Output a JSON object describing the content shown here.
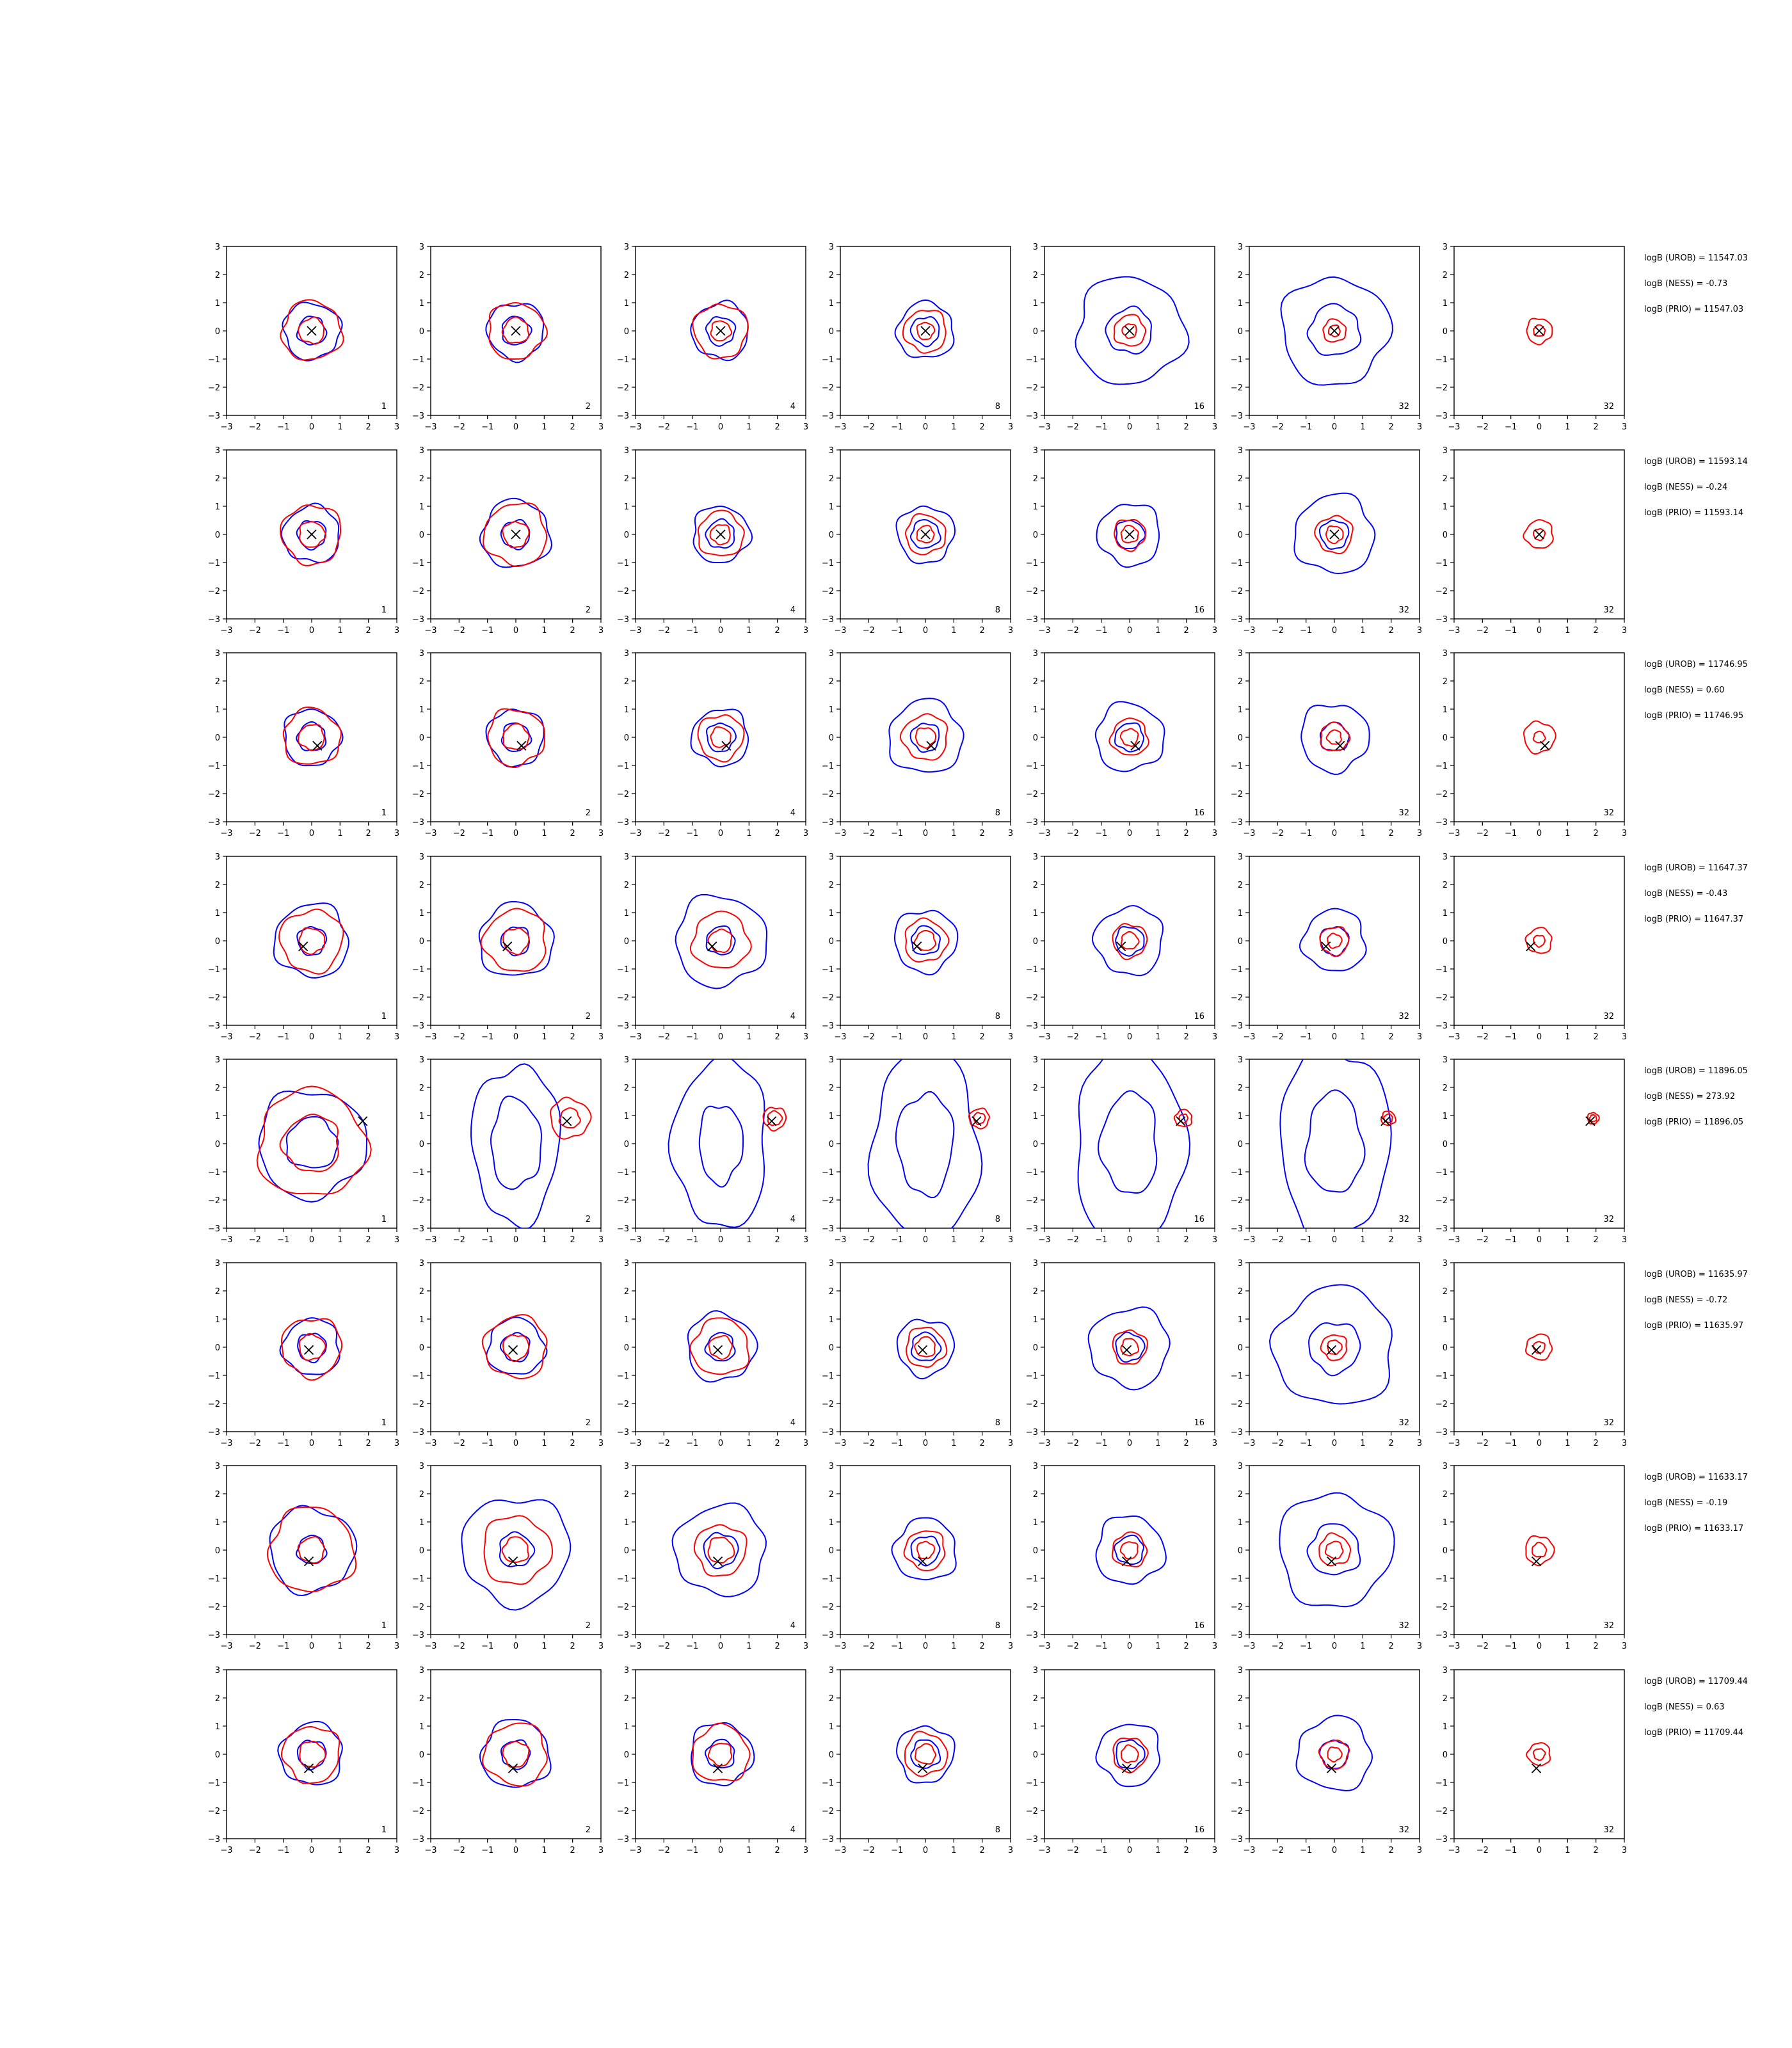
{
  "colors": {
    "prior": "#0000ff",
    "posterior": "#ff0000",
    "truth": "#000000"
  },
  "chart_data": {
    "type": "contour-grid",
    "xlim": [
      -3,
      3
    ],
    "ylim": [
      -3,
      3
    ],
    "xticks": [
      "−3",
      "−2",
      "−1",
      "0",
      "1",
      "2",
      "3"
    ],
    "yticks": [
      "3",
      "2",
      "1",
      "0",
      "−1",
      "−2",
      "−3"
    ],
    "grid": false,
    "columns": [
      {
        "label": "1",
        "prior": true
      },
      {
        "label": "2",
        "prior": true
      },
      {
        "label": "4",
        "prior": true
      },
      {
        "label": "8",
        "prior": true
      },
      {
        "label": "16",
        "prior": true
      },
      {
        "label": "32",
        "prior": true
      },
      {
        "label": "32",
        "prior": false
      }
    ],
    "rows": [
      {
        "truth": [
          0.0,
          0.0
        ],
        "annotations": [
          "logB (UROB) = 11547.03",
          "logB (NESS) = -0.73",
          "logB (PRIO) = 11547.03"
        ],
        "prior_radii": [
          [
            0.5,
            1.0
          ],
          [
            0.5,
            1.0
          ],
          [
            0.5,
            1.0
          ],
          [
            0.5,
            1.0
          ],
          [
            0.8,
            1.9
          ],
          [
            0.9,
            1.9
          ]
        ],
        "post_radii": [
          [
            0.45,
            1.05
          ],
          [
            0.45,
            1.0
          ],
          [
            0.35,
            0.95
          ],
          [
            0.3,
            0.75
          ],
          [
            0.25,
            0.55
          ],
          [
            0.2,
            0.4
          ],
          [
            0.2,
            0.45
          ]
        ]
      },
      {
        "truth": [
          0.0,
          0.0
        ],
        "annotations": [
          "logB (UROB) = 11593.14",
          "logB (NESS) = -0.24",
          "logB (PRIO) = 11593.14"
        ],
        "prior_radii": [
          [
            0.5,
            1.0
          ],
          [
            0.5,
            1.2
          ],
          [
            0.5,
            1.0
          ],
          [
            0.5,
            1.0
          ],
          [
            0.5,
            1.1
          ],
          [
            0.5,
            1.4
          ]
        ],
        "post_radii": [
          [
            0.45,
            1.05
          ],
          [
            0.45,
            1.1
          ],
          [
            0.35,
            0.8
          ],
          [
            0.3,
            0.7
          ],
          [
            0.3,
            0.55
          ],
          [
            0.3,
            0.65
          ],
          [
            0.2,
            0.5
          ]
        ]
      },
      {
        "truth": [
          0.2,
          -0.3
        ],
        "annotations": [
          "logB (UROB) = 11746.95",
          "logB (NESS) = 0.60",
          "logB (PRIO) = 11746.95"
        ],
        "prior_radii": [
          [
            0.5,
            1.0
          ],
          [
            0.5,
            1.0
          ],
          [
            0.5,
            1.0
          ],
          [
            0.5,
            1.3
          ],
          [
            0.5,
            1.2
          ],
          [
            0.5,
            1.2
          ]
        ],
        "post_radii": [
          [
            0.45,
            1.0
          ],
          [
            0.45,
            1.0
          ],
          [
            0.35,
            0.8
          ],
          [
            0.35,
            0.8
          ],
          [
            0.3,
            0.65
          ],
          [
            0.25,
            0.5
          ],
          [
            0.2,
            0.55
          ]
        ]
      },
      {
        "truth": [
          -0.3,
          -0.2
        ],
        "annotations": [
          "logB (UROB) = 11647.37",
          "logB (NESS) = -0.43",
          "logB (PRIO) = 11647.37"
        ],
        "prior_radii": [
          [
            0.5,
            1.3
          ],
          [
            0.5,
            1.3
          ],
          [
            0.5,
            1.6
          ],
          [
            0.5,
            1.1
          ],
          [
            0.5,
            1.2
          ],
          [
            0.5,
            1.1
          ]
        ],
        "post_radii": [
          [
            0.45,
            1.1
          ],
          [
            0.45,
            1.1
          ],
          [
            0.4,
            1.0
          ],
          [
            0.35,
            0.75
          ],
          [
            0.3,
            0.6
          ],
          [
            0.25,
            0.5
          ],
          [
            0.2,
            0.45
          ]
        ]
      },
      {
        "truth": [
          1.8,
          0.8
        ],
        "annotations": [
          "logB (UROB) = 11896.05",
          "logB (NESS) = 273.92",
          "logB (PRIO) = 11896.05"
        ],
        "prior_radii": [
          [
            0.9,
            1.9
          ],
          [
            1.6,
            2.8
          ],
          [
            1.4,
            3.0
          ],
          [
            1.8,
            3.4
          ],
          [
            1.8,
            3.5
          ],
          [
            1.8,
            3.5
          ]
        ],
        "post_radii": [
          [
            1.0,
            1.9
          ],
          [
            0.35,
            0.7
          ],
          [
            0.25,
            0.4
          ],
          [
            0.2,
            0.35
          ],
          [
            0.15,
            0.3
          ],
          [
            0.15,
            0.25
          ],
          [
            0.12,
            0.2
          ]
        ]
      },
      {
        "truth": [
          -0.1,
          -0.1
        ],
        "annotations": [
          "logB (UROB) = 11635.97",
          "logB (NESS) = -0.72",
          "logB (PRIO) = 11635.97"
        ],
        "prior_radii": [
          [
            0.5,
            1.0
          ],
          [
            0.5,
            1.0
          ],
          [
            0.5,
            1.2
          ],
          [
            0.5,
            1.0
          ],
          [
            0.5,
            1.4
          ],
          [
            0.9,
            2.1
          ]
        ],
        "post_radii": [
          [
            0.45,
            1.05
          ],
          [
            0.45,
            1.1
          ],
          [
            0.4,
            1.0
          ],
          [
            0.35,
            0.7
          ],
          [
            0.3,
            0.6
          ],
          [
            0.25,
            0.45
          ],
          [
            0.2,
            0.45
          ]
        ]
      },
      {
        "truth": [
          -0.1,
          -0.4
        ],
        "annotations": [
          "logB (UROB) = 11633.17",
          "logB (NESS) = -0.19",
          "logB (PRIO) = 11633.17"
        ],
        "prior_radii": [
          [
            0.5,
            1.5
          ],
          [
            0.6,
            1.9
          ],
          [
            0.6,
            1.6
          ],
          [
            0.5,
            1.1
          ],
          [
            0.5,
            1.2
          ],
          [
            0.9,
            2.0
          ]
        ],
        "post_radii": [
          [
            0.45,
            1.5
          ],
          [
            0.45,
            1.2
          ],
          [
            0.45,
            0.9
          ],
          [
            0.3,
            0.7
          ],
          [
            0.3,
            0.6
          ],
          [
            0.3,
            0.55
          ],
          [
            0.25,
            0.5
          ]
        ]
      },
      {
        "truth": [
          -0.1,
          -0.5
        ],
        "annotations": [
          "logB (UROB) = 11709.44",
          "logB (NESS) = 0.63",
          "logB (PRIO) = 11709.44"
        ],
        "prior_radii": [
          [
            0.5,
            1.1
          ],
          [
            0.5,
            1.2
          ],
          [
            0.5,
            1.1
          ],
          [
            0.5,
            1.0
          ],
          [
            0.5,
            1.1
          ],
          [
            0.5,
            1.3
          ]
        ],
        "post_radii": [
          [
            0.45,
            1.0
          ],
          [
            0.45,
            1.1
          ],
          [
            0.4,
            1.0
          ],
          [
            0.35,
            0.75
          ],
          [
            0.3,
            0.6
          ],
          [
            0.25,
            0.5
          ],
          [
            0.2,
            0.4
          ]
        ]
      }
    ]
  }
}
